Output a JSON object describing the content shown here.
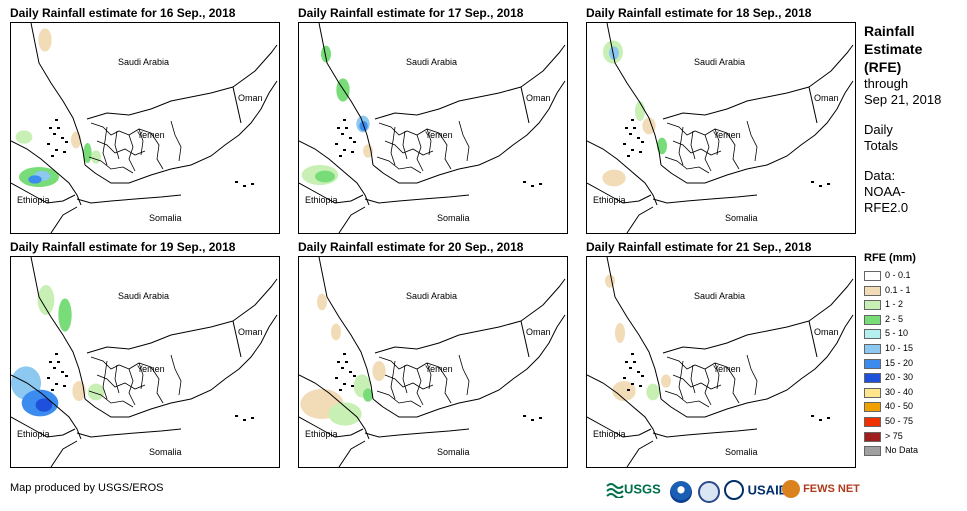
{
  "panels": [
    {
      "title": "Daily Rainfall estimate for 16 Sep., 2018",
      "day": 16
    },
    {
      "title": "Daily Rainfall estimate for 17 Sep., 2018",
      "day": 17
    },
    {
      "title": "Daily Rainfall estimate for 18 Sep., 2018",
      "day": 18
    },
    {
      "title": "Daily Rainfall estimate for 19 Sep., 2018",
      "day": 19
    },
    {
      "title": "Daily Rainfall estimate for 20 Sep., 2018",
      "day": 20
    },
    {
      "title": "Daily Rainfall estimate for 21 Sep., 2018",
      "day": 21
    }
  ],
  "map_labels": {
    "saudi": "Saudi Arabia",
    "oman": "Oman",
    "yemen": "Yemen",
    "ethiopia": "Ethiopia",
    "somalia": "Somalia"
  },
  "sidebar": {
    "title_line1": "Rainfall",
    "title_line2": "Estimate",
    "title_line3": "(RFE)",
    "through": "through",
    "date": "Sep 21, 2018",
    "daily1": "Daily",
    "daily2": "Totals",
    "data1": "Data:",
    "data2": "NOAA-",
    "data3": "RFE2.0"
  },
  "legend": {
    "title": "RFE (mm)",
    "items": [
      {
        "label": "0 - 0.1",
        "color": "#ffffff"
      },
      {
        "label": "0.1 - 1",
        "color": "#f2dcb8"
      },
      {
        "label": "1 - 2",
        "color": "#c8f0b4"
      },
      {
        "label": "2 - 5",
        "color": "#78dc78"
      },
      {
        "label": "5 - 10",
        "color": "#b4f0f0"
      },
      {
        "label": "10 - 15",
        "color": "#8cc8f0"
      },
      {
        "label": "15 - 20",
        "color": "#3c8cf0"
      },
      {
        "label": "20 - 30",
        "color": "#1e50dc"
      },
      {
        "label": "30 - 40",
        "color": "#ffe68c"
      },
      {
        "label": "40 - 50",
        "color": "#f0a000"
      },
      {
        "label": "50 - 75",
        "color": "#f03200"
      },
      {
        "label": "> 75",
        "color": "#a01e1e"
      },
      {
        "label": "No Data",
        "color": "#a0a0a0"
      }
    ]
  },
  "credit": "Map produced by USGS/EROS",
  "logos": {
    "usgs": "USGS",
    "usaid": "USAID",
    "fewsnet": "FEWS NET"
  }
}
